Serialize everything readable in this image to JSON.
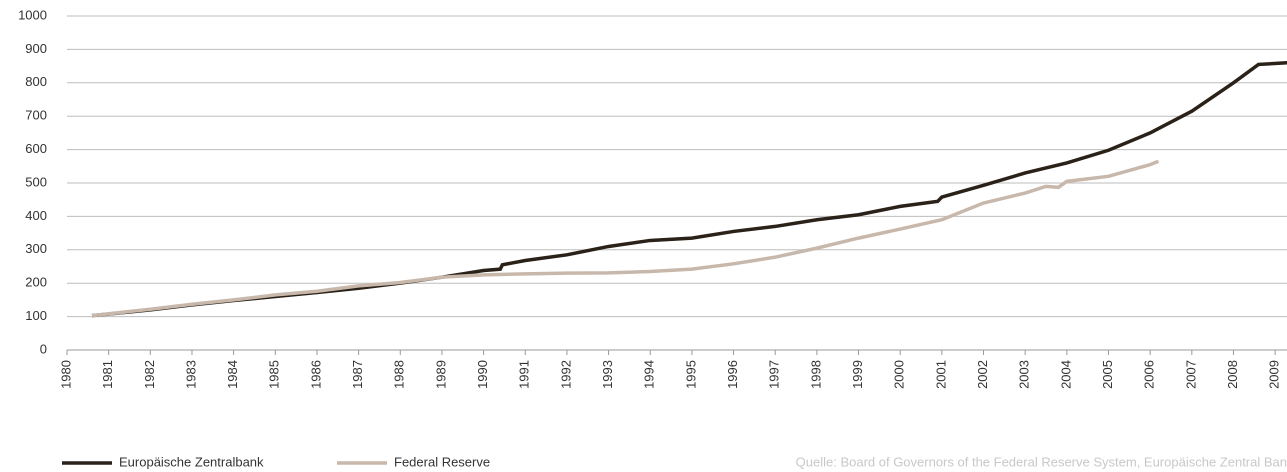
{
  "chart_data": {
    "type": "line",
    "x_ticks_note": null,
    "xlim": [
      1980,
      2009.3
    ],
    "xticks": [
      1980,
      1981,
      1982,
      1983,
      1984,
      1985,
      1986,
      1987,
      1988,
      1989,
      1990,
      1991,
      1992,
      1993,
      1994,
      1995,
      1996,
      1997,
      1998,
      1999,
      2000,
      2001,
      2002,
      2003,
      2004,
      2005,
      2006,
      2007,
      2008,
      2009
    ],
    "ylim": [
      0,
      1000
    ],
    "yticks": [
      0,
      100,
      200,
      300,
      400,
      500,
      600,
      700,
      800,
      900,
      1000
    ],
    "grid": true,
    "legend": "bottom-left",
    "source": "Quelle: Board of Governors of the Federal Reserve System, Europäische Zentral Ban",
    "series": [
      {
        "name": "Europäische Zentralbank",
        "color": "#2a2118",
        "x": [
          1980.6,
          1982,
          1983,
          1984,
          1985,
          1986,
          1987,
          1988,
          1989,
          1990,
          1990.4,
          1990.45,
          1991,
          1992,
          1993,
          1994,
          1995,
          1996,
          1997,
          1998,
          1999,
          2000,
          2000.9,
          2001,
          2002,
          2003,
          2004,
          2005,
          2006,
          2007,
          2008,
          2008.6,
          2009.3
        ],
        "values": [
          103,
          120,
          135,
          148,
          160,
          172,
          185,
          200,
          218,
          238,
          242,
          255,
          268,
          285,
          310,
          328,
          335,
          355,
          370,
          390,
          405,
          430,
          445,
          458,
          493,
          530,
          560,
          598,
          650,
          715,
          800,
          855,
          860
        ]
      },
      {
        "name": "Federal Reserve",
        "color": "#c8b8ab",
        "x": [
          1980.6,
          1982,
          1983,
          1984,
          1985,
          1986,
          1987,
          1988,
          1989,
          1990,
          1991,
          1992,
          1993,
          1994,
          1995,
          1996,
          1997,
          1998,
          1999,
          2000,
          2001,
          2002,
          2003,
          2003.5,
          2003.8,
          2004,
          2005,
          2006,
          2006.2
        ],
        "values": [
          103,
          122,
          137,
          150,
          165,
          176,
          192,
          202,
          218,
          225,
          228,
          230,
          231,
          235,
          242,
          258,
          278,
          305,
          335,
          362,
          390,
          440,
          470,
          490,
          487,
          505,
          520,
          555,
          565
        ]
      }
    ]
  }
}
